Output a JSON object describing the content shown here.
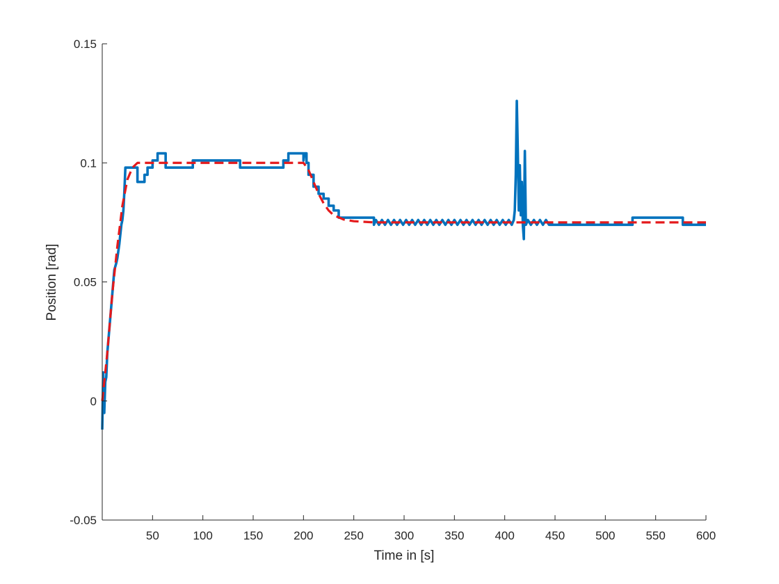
{
  "chart_data": {
    "type": "line",
    "title": "",
    "xlabel": "Time in [s]",
    "ylabel": "Position [rad]",
    "xlim": [
      0,
      600
    ],
    "ylim": [
      -0.05,
      0.15
    ],
    "xticks": [
      50,
      100,
      150,
      200,
      250,
      300,
      350,
      400,
      450,
      500,
      550,
      600
    ],
    "yticks": [
      -0.05,
      0,
      0.05,
      0.1,
      0.15
    ],
    "xtick_labels": [
      "50",
      "100",
      "150",
      "200",
      "250",
      "300",
      "350",
      "400",
      "450",
      "500",
      "550",
      "600"
    ],
    "ytick_labels": [
      "-0.05",
      "0",
      "0.05",
      "0.1",
      "0.15"
    ],
    "grid": false,
    "legend": "none",
    "series": [
      {
        "color": "#0072BD",
        "style": "solid",
        "points": [
          [
            0,
            -0.012
          ],
          [
            1,
            0.012
          ],
          [
            2,
            -0.005
          ],
          [
            3,
            0.008
          ],
          [
            4,
            0.01
          ],
          [
            5,
            0.02
          ],
          [
            8,
            0.035
          ],
          [
            10,
            0.045
          ],
          [
            12,
            0.055
          ],
          [
            14,
            0.058
          ],
          [
            15,
            0.06
          ],
          [
            17,
            0.066
          ],
          [
            19,
            0.074
          ],
          [
            20,
            0.076
          ],
          [
            21,
            0.08
          ],
          [
            22,
            0.088
          ],
          [
            23,
            0.098
          ],
          [
            35,
            0.098
          ],
          [
            35,
            0.092
          ],
          [
            42,
            0.092
          ],
          [
            42,
            0.095
          ],
          [
            45,
            0.095
          ],
          [
            45,
            0.098
          ],
          [
            50,
            0.098
          ],
          [
            50,
            0.101
          ],
          [
            55,
            0.101
          ],
          [
            55,
            0.104
          ],
          [
            63,
            0.104
          ],
          [
            63,
            0.098
          ],
          [
            90,
            0.098
          ],
          [
            90,
            0.101
          ],
          [
            137,
            0.101
          ],
          [
            137,
            0.098
          ],
          [
            180,
            0.098
          ],
          [
            180,
            0.101
          ],
          [
            185,
            0.101
          ],
          [
            185,
            0.104
          ],
          [
            200,
            0.104
          ],
          [
            200,
            0.101
          ],
          [
            201,
            0.104
          ],
          [
            203,
            0.104
          ],
          [
            203,
            0.1
          ],
          [
            205,
            0.1
          ],
          [
            205,
            0.095
          ],
          [
            210,
            0.095
          ],
          [
            210,
            0.09
          ],
          [
            215,
            0.09
          ],
          [
            215,
            0.087
          ],
          [
            220,
            0.087
          ],
          [
            220,
            0.085
          ],
          [
            225,
            0.085
          ],
          [
            225,
            0.082
          ],
          [
            230,
            0.082
          ],
          [
            230,
            0.08
          ],
          [
            235,
            0.08
          ],
          [
            235,
            0.077
          ],
          [
            270,
            0.077
          ],
          [
            270,
            0.074
          ],
          [
            272,
            0.076
          ],
          [
            275,
            0.074
          ],
          [
            278,
            0.076
          ],
          [
            281,
            0.074
          ],
          [
            284,
            0.076
          ],
          [
            287,
            0.074
          ],
          [
            290,
            0.076
          ],
          [
            293,
            0.074
          ],
          [
            296,
            0.076
          ],
          [
            299,
            0.074
          ],
          [
            302,
            0.076
          ],
          [
            305,
            0.074
          ],
          [
            308,
            0.076
          ],
          [
            311,
            0.074
          ],
          [
            314,
            0.076
          ],
          [
            317,
            0.074
          ],
          [
            320,
            0.076
          ],
          [
            323,
            0.074
          ],
          [
            326,
            0.076
          ],
          [
            329,
            0.074
          ],
          [
            332,
            0.076
          ],
          [
            335,
            0.074
          ],
          [
            338,
            0.076
          ],
          [
            341,
            0.074
          ],
          [
            344,
            0.076
          ],
          [
            347,
            0.074
          ],
          [
            350,
            0.076
          ],
          [
            353,
            0.074
          ],
          [
            356,
            0.076
          ],
          [
            359,
            0.074
          ],
          [
            362,
            0.076
          ],
          [
            365,
            0.074
          ],
          [
            368,
            0.076
          ],
          [
            371,
            0.074
          ],
          [
            374,
            0.076
          ],
          [
            377,
            0.074
          ],
          [
            380,
            0.076
          ],
          [
            383,
            0.074
          ],
          [
            386,
            0.076
          ],
          [
            389,
            0.074
          ],
          [
            392,
            0.076
          ],
          [
            395,
            0.074
          ],
          [
            398,
            0.076
          ],
          [
            401,
            0.074
          ],
          [
            404,
            0.076
          ],
          [
            407,
            0.074
          ],
          [
            409,
            0.076
          ],
          [
            410,
            0.08
          ],
          [
            411,
            0.095
          ],
          [
            412,
            0.126
          ],
          [
            413,
            0.105
          ],
          [
            414,
            0.08
          ],
          [
            415,
            0.099
          ],
          [
            416,
            0.078
          ],
          [
            417,
            0.092
          ],
          [
            418,
            0.074
          ],
          [
            419,
            0.068
          ],
          [
            420,
            0.105
          ],
          [
            421,
            0.074
          ],
          [
            423,
            0.076
          ],
          [
            426,
            0.074
          ],
          [
            429,
            0.076
          ],
          [
            432,
            0.074
          ],
          [
            435,
            0.076
          ],
          [
            438,
            0.074
          ],
          [
            441,
            0.076
          ],
          [
            444,
            0.074
          ],
          [
            527,
            0.074
          ],
          [
            527,
            0.077
          ],
          [
            577,
            0.077
          ],
          [
            577,
            0.074
          ],
          [
            600,
            0.074
          ]
        ]
      },
      {
        "color": "#E41A1C",
        "style": "dashed",
        "points": [
          [
            0,
            0.0
          ],
          [
            5,
            0.02
          ],
          [
            10,
            0.045
          ],
          [
            15,
            0.065
          ],
          [
            20,
            0.082
          ],
          [
            25,
            0.093
          ],
          [
            30,
            0.098
          ],
          [
            35,
            0.1
          ],
          [
            200,
            0.1
          ],
          [
            205,
            0.097
          ],
          [
            210,
            0.092
          ],
          [
            215,
            0.087
          ],
          [
            220,
            0.083
          ],
          [
            225,
            0.08
          ],
          [
            230,
            0.078
          ],
          [
            240,
            0.0762
          ],
          [
            250,
            0.0755
          ],
          [
            270,
            0.075
          ],
          [
            600,
            0.075
          ]
        ]
      }
    ]
  }
}
